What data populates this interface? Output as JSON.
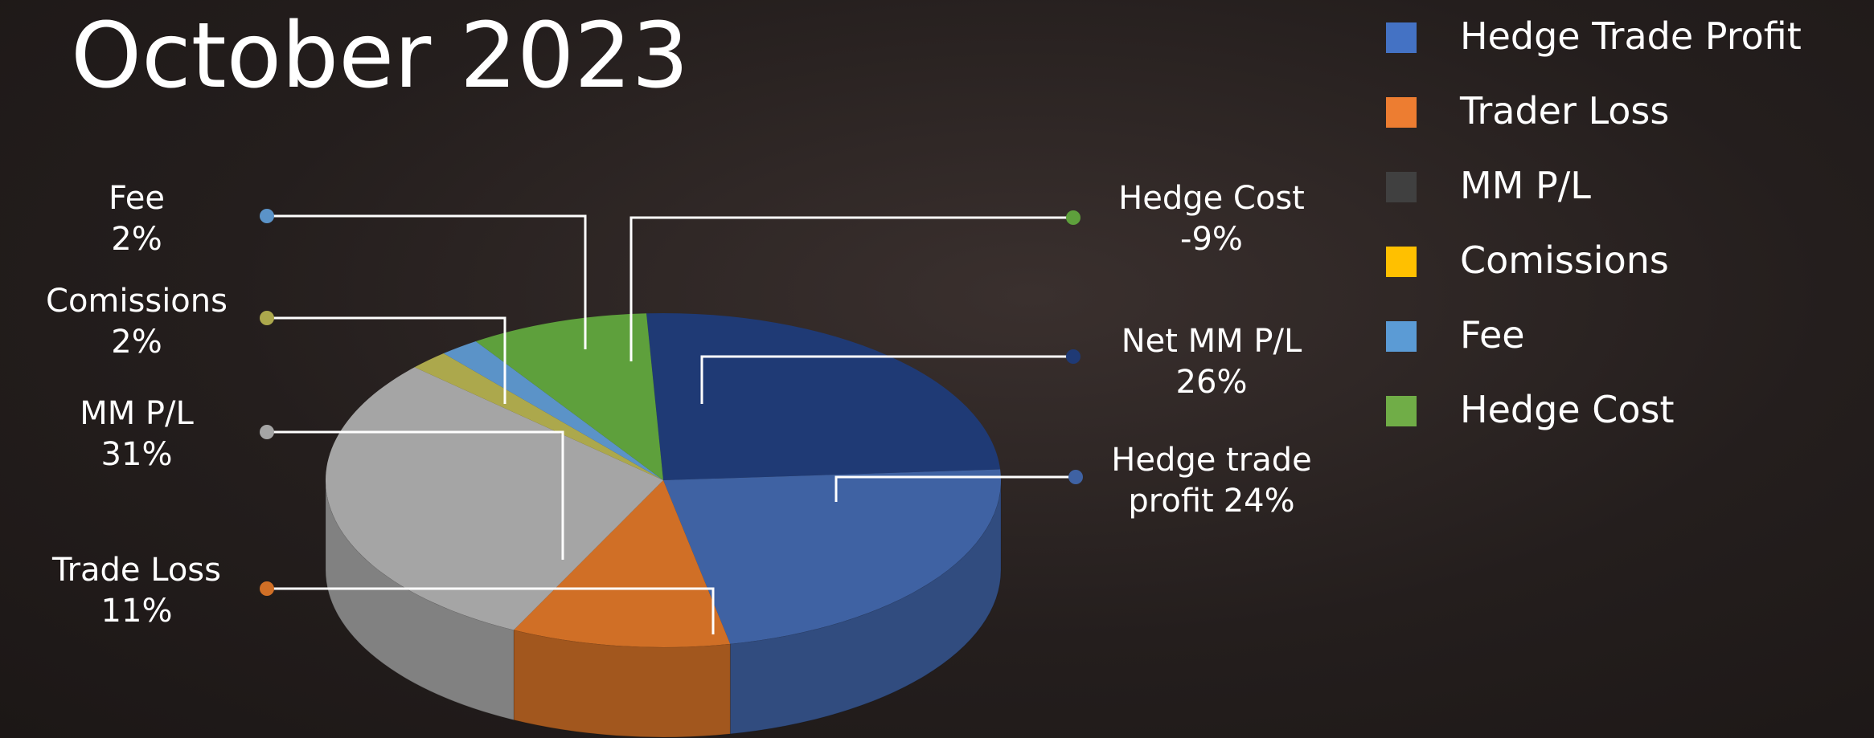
{
  "chart_data": {
    "type": "pie3d",
    "title": "October 2023",
    "categories": [
      "Net MM P/L",
      "Hedge trade profit",
      "Trade Loss",
      "MM P/L",
      "Comissions",
      "Fee",
      "Hedge Cost"
    ],
    "values": [
      26,
      24,
      11,
      31,
      2,
      2,
      -9
    ],
    "value_labels": [
      "26%",
      "24%",
      "11%",
      "31%",
      "2%",
      "2%",
      "-9%"
    ],
    "colors": [
      "#1f3a75",
      "#3f62a3",
      "#d06f26",
      "#a5a5a5",
      "#aca84c",
      "#5b93c8",
      "#5ea03c"
    ],
    "legend": [
      {
        "name": "Hedge Trade Profit",
        "color": "#4472c4"
      },
      {
        "name": "Trader Loss",
        "color": "#ed7d31"
      },
      {
        "name": "MM P/L",
        "color": "#404040"
      },
      {
        "name": "Comissions",
        "color": "#ffc000"
      },
      {
        "name": "Fee",
        "color": "#5b9bd5"
      },
      {
        "name": "Hedge Cost",
        "color": "#70ad47"
      }
    ]
  }
}
